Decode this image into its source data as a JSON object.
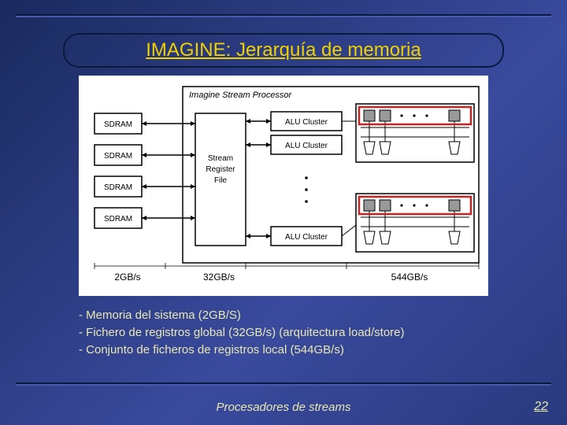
{
  "title": "IMAGINE: Jerarquía de memoria",
  "diagram": {
    "frame_label": "Imagine Stream Processor",
    "sdram_label": "SDRAM",
    "sdram_count": 4,
    "srf_label": "Stream\nRegister\nFile",
    "alu_label": "ALU Cluster",
    "bandwidth_labels": [
      "2GB/s",
      "32GB/s",
      "544GB/s"
    ],
    "colors": {
      "box_stroke": "#000000",
      "box_fill": "#ffffff",
      "highlight_stroke": "#cc2222",
      "highlight_width": 2.5,
      "small_fill": "#999999",
      "text": "#000000"
    },
    "font": {
      "label_pt": 10,
      "bw_pt": 12,
      "family": "Arial, Helvetica, sans-serif"
    }
  },
  "bullets": [
    "- Memoria del sistema (2GB/S)",
    "- Fichero de registros global (32GB/s) (arquitectura load/store)",
    "- Conjunto de ficheros de registros local (544GB/s)"
  ],
  "footer": "Procesadores de streams",
  "page_number": "22"
}
